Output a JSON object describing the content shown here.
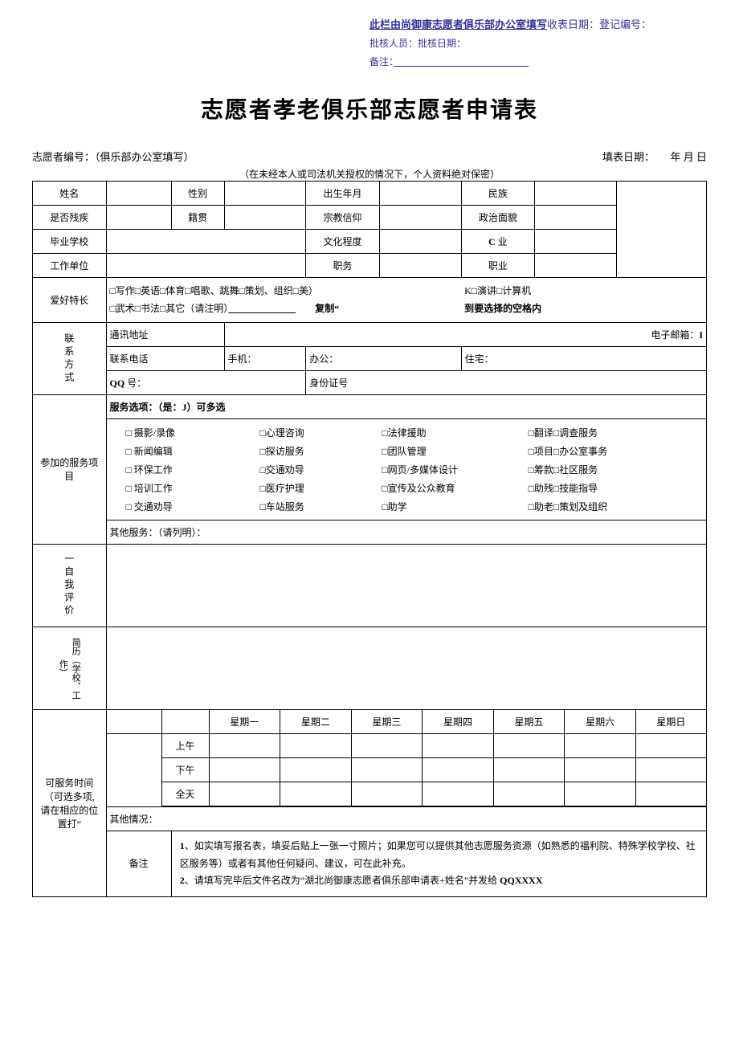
{
  "header": {
    "box_title": "此栏由尚御康志愿者俱乐部办公室填写",
    "line1_a": "收表日期：",
    "line1_b": "登记编号：",
    "line2": "批核人员：批核日期：",
    "line3": "备注：",
    "underline_fill": "　　　　　　　　　　　　　　"
  },
  "title": "志愿者孝老俱乐部志愿者申请表",
  "meta": {
    "volunteer_no": "志愿者编号：（俱乐部办公室填写）",
    "fill_date": "填表日期：　　年 月 日",
    "confidential": "（在未经本人或司法机关授权的情况下，个人资料绝对保密）"
  },
  "rows": {
    "r1": {
      "c1": "姓名",
      "c2": "性别",
      "c3": "出生年月",
      "c4": "民族"
    },
    "r2": {
      "c1": "是否残疾",
      "c2": "籍贯",
      "c3": "宗教信仰",
      "c4": "政治面貌"
    },
    "r3": {
      "c1": "毕业学校",
      "c3": "文化程度",
      "c4_a": "C",
      "c4_b": " 业"
    },
    "r4": {
      "c1": "工作单位",
      "c3": "职务",
      "c4": "职业"
    },
    "hobby": {
      "label": "爱好特长",
      "line1_a": "□写作□英语□体育□唱歌、跳舞□策划、组织□美）",
      "line1_b": "K□演讲□计算机",
      "line2_a": "□武术□书法□其它（请注明）",
      "line2_b": "复制“",
      "line2_c": "到要选择的空格内",
      "blank": "　　　　　　　"
    },
    "contact": {
      "label": "联系方式",
      "addr": "通讯地址",
      "email": "电子邮箱：",
      "email_b": "I",
      "phone": "联系电话",
      "mobile": "手机：",
      "office": "办公：",
      "home": "住宅：",
      "qq_a": "QQ",
      "qq_b": " 号：",
      "idcard": "身份证号"
    },
    "service": {
      "label": "参加的服务项目",
      "header_a": "服务选项：（是：",
      "header_b": "J",
      "header_c": "）可多选",
      "items": [
        "□ 摄影/录像",
        "□心理咨询",
        "□法律援助",
        "□翻译□调查服务",
        "□ 新闻编辑",
        "□探访服务",
        "□团队管理",
        "□项目□办公室事务",
        "□ 环保工作",
        "□交通劝导",
        "□网页/多媒体设计",
        "□筹款□社区服务",
        "□ 培训工作",
        "□医疗护理",
        "□宣传及公众教育",
        "□助残□技能指导",
        "□ 交通劝导",
        "□车站服务",
        "□助学",
        "□助老□策划及组织"
      ],
      "other": "其他服务：（请列明）："
    },
    "selfeval": "一自我评价",
    "resume": "简历（学校、工作）",
    "schedule": {
      "label1": "可服务时间",
      "label2": "（可选多项,",
      "label3": "请在相应的位",
      "label4": "置打”",
      "days": [
        "星期一",
        "星期二",
        "星期三",
        "星期四",
        "星期五",
        "星期六",
        "星期日"
      ],
      "slots": [
        "上午",
        "下午",
        "全天"
      ],
      "other": "其他情况："
    },
    "remark": {
      "label": "备注",
      "n1": "1",
      "t1": "、如实填写报名表，填妥后贴上一张一寸照片；如果您可以提供其他志愿服务资源（如熟悉的福利院、特殊学校学校、社区服务等）或者有其他任何疑问、建议，可在此补充。",
      "n2": "2",
      "t2a": "、请填写完毕后文件名改为“湖北尚御康志愿者俱乐部申请表+姓名”并发给 ",
      "t2b": "QQXXXX"
    }
  }
}
